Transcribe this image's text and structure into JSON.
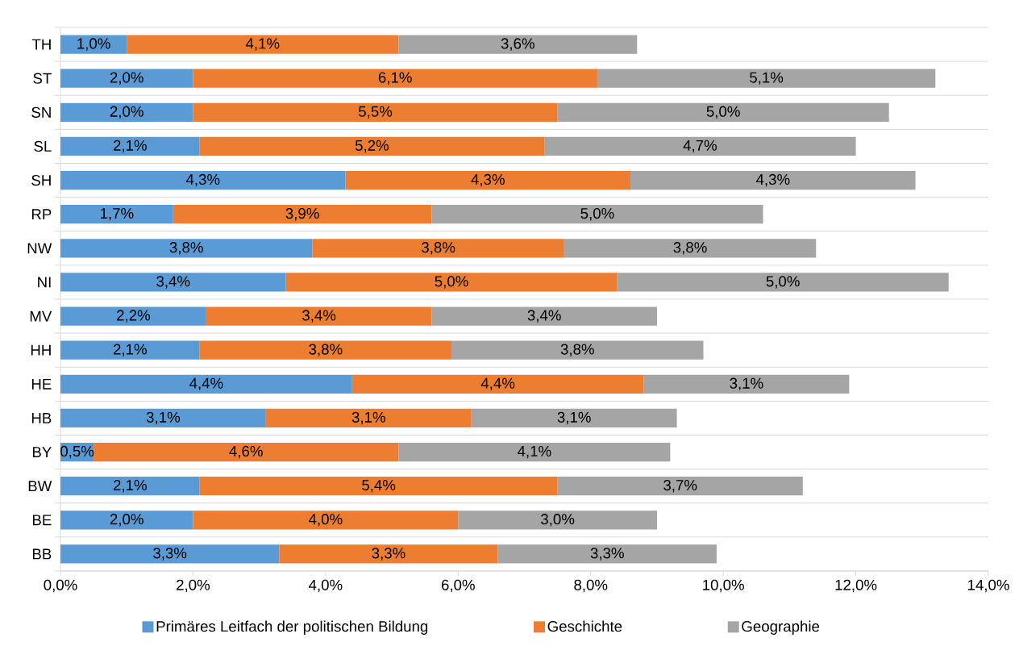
{
  "chart_data": {
    "type": "bar",
    "orientation": "horizontal",
    "stacked": true,
    "categories": [
      "TH",
      "ST",
      "SN",
      "SL",
      "SH",
      "RP",
      "NW",
      "NI",
      "MV",
      "HH",
      "HE",
      "HB",
      "BY",
      "BW",
      "BE",
      "BB"
    ],
    "series": [
      {
        "name": "Primäres Leitfach der politischen Bildung",
        "color": "#5b9bd5",
        "values": [
          1.0,
          2.0,
          2.0,
          2.1,
          4.3,
          1.7,
          3.8,
          3.4,
          2.2,
          2.1,
          4.4,
          3.1,
          0.5,
          2.1,
          2.0,
          3.3
        ],
        "value_labels": [
          "1,0%",
          "2,0%",
          "2,0%",
          "2,1%",
          "4,3%",
          "1,7%",
          "3,8%",
          "3,4%",
          "2,2%",
          "2,1%",
          "4,4%",
          "3,1%",
          "0,5%",
          "2,1%",
          "2,0%",
          "3,3%"
        ]
      },
      {
        "name": "Geschichte",
        "color": "#ed7d31",
        "values": [
          4.1,
          6.1,
          5.5,
          5.2,
          4.3,
          3.9,
          3.8,
          5.0,
          3.4,
          3.8,
          4.4,
          3.1,
          4.6,
          5.4,
          4.0,
          3.3
        ],
        "value_labels": [
          "4,1%",
          "6,1%",
          "5,5%",
          "5,2%",
          "4,3%",
          "3,9%",
          "3,8%",
          "5,0%",
          "3,4%",
          "3,8%",
          "4,4%",
          "3,1%",
          "4,6%",
          "5,4%",
          "4,0%",
          "3,3%"
        ]
      },
      {
        "name": "Geographie",
        "color": "#a5a5a5",
        "values": [
          3.6,
          5.1,
          5.0,
          4.7,
          4.3,
          5.0,
          3.8,
          5.0,
          3.4,
          3.8,
          3.1,
          3.1,
          4.1,
          3.7,
          3.0,
          3.3
        ],
        "value_labels": [
          "3,6%",
          "5,1%",
          "5,0%",
          "4,7%",
          "4,3%",
          "5,0%",
          "3,8%",
          "5,0%",
          "3,4%",
          "3,8%",
          "3,1%",
          "3,1%",
          "4,1%",
          "3,7%",
          "3,0%",
          "3,3%"
        ]
      }
    ],
    "xlim": [
      0,
      14
    ],
    "xticks": [
      {
        "value": 0,
        "label": "0,0%"
      },
      {
        "value": 2,
        "label": "2,0%"
      },
      {
        "value": 4,
        "label": "4,0%"
      },
      {
        "value": 6,
        "label": "6,0%"
      },
      {
        "value": 8,
        "label": "8,0%"
      },
      {
        "value": 10,
        "label": "10,0%"
      },
      {
        "value": 12,
        "label": "12,0%"
      },
      {
        "value": 14,
        "label": "14,0%"
      }
    ],
    "grid": "y",
    "legend": "bottom"
  }
}
